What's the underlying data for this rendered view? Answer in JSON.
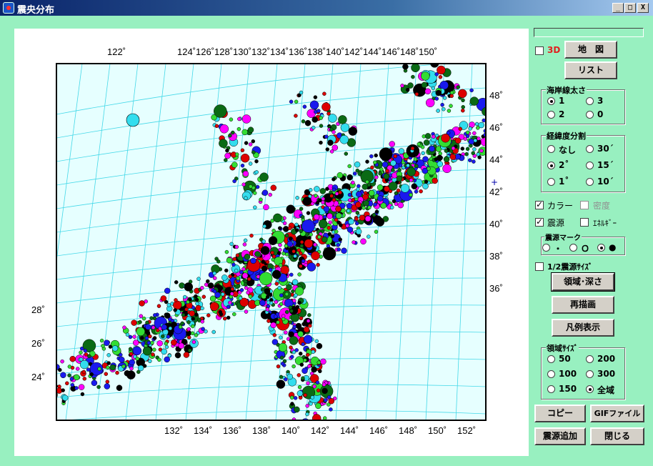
{
  "window": {
    "title": "震央分布",
    "min": "_",
    "max": "□",
    "close": "X"
  },
  "map": {
    "top_lon_labels": [
      "122˚",
      "124˚",
      "126˚",
      "128˚",
      "130˚",
      "132˚",
      "134˚",
      "136˚",
      "138˚",
      "140˚",
      "142˚",
      "144˚",
      "146˚",
      "148˚",
      "150˚"
    ],
    "bottom_lon_labels": [
      "132˚",
      "134˚",
      "136˚",
      "138˚",
      "140˚",
      "142˚",
      "144˚",
      "146˚",
      "148˚",
      "150˚",
      "152˚"
    ],
    "right_lat_labels": [
      "48˚",
      "46˚",
      "44˚",
      "42˚",
      "40˚",
      "38˚",
      "36˚"
    ],
    "left_lat_labels": [
      "28˚",
      "26˚",
      "24˚"
    ],
    "colors": {
      "water": "#e6ffff",
      "grid": "#44d8e8",
      "coast": "#0000cc"
    },
    "marker_colors": [
      "#33dd33",
      "#0a6a14",
      "#dd0000",
      "#1a1aee",
      "#ff00ff",
      "#33ddee",
      "#000000"
    ]
  },
  "controls": {
    "threed": {
      "label": "3D",
      "checked": false
    },
    "map_button": "地　図",
    "list_button": "リスト",
    "coastline": {
      "title": "海岸線太さ",
      "options": [
        "1",
        "3",
        "2",
        "0"
      ],
      "selected": "1"
    },
    "grid_div": {
      "title": "経緯度分割",
      "options": [
        "なし",
        "30´",
        "2˚",
        "15´",
        "1˚",
        "10´"
      ],
      "selected": "2˚"
    },
    "color": {
      "label": "カラー",
      "checked": true
    },
    "density": {
      "label": "密度",
      "checked": false
    },
    "hypocenter": {
      "label": "震源",
      "checked": true
    },
    "energy": {
      "label": "ｴﾈﾙｷﾞｰ",
      "checked": false
    },
    "mark": {
      "title": "震源マーク",
      "options": [
        "・",
        "Ｏ",
        "●"
      ],
      "selected": "●"
    },
    "half_size": {
      "label": "1/2震源ｻｲｽﾞ",
      "checked": false
    },
    "region_depth_button": "領域･深さ",
    "redraw_button": "再描画",
    "legend_button": "凡例表示",
    "region_size": {
      "title": "領域ｻｲｽﾞ",
      "options": [
        "50",
        "200",
        "100",
        "300",
        "150",
        "全域"
      ],
      "selected": "全域"
    },
    "copy_button": "コピー",
    "gif_button": "GIFファイル",
    "add_button": "震源追加",
    "close_button": "閉じる"
  }
}
